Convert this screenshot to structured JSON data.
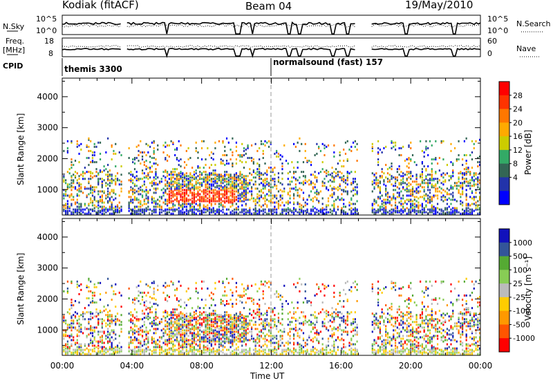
{
  "header": {
    "radar": "Kodiak (fitACF)",
    "beam": "Beam 04",
    "date": "19/May/2010"
  },
  "top_panels": {
    "nsky_label": "N.Sky",
    "nsky_ticks": [
      "10^5",
      "10^0"
    ],
    "nsearch_label": "N.Search",
    "nsearch_ticks": [
      "10^5",
      "10^0"
    ],
    "freq_label_1": "Freq.",
    "freq_label_2": "[MHz]",
    "freq_ticks": [
      "18",
      "8"
    ],
    "nave_label": "Nave",
    "nave_ticks": [
      "60",
      "0"
    ],
    "cpid_label": "CPID",
    "cpid_modes": [
      {
        "name": "themis 3300",
        "start_hour": 0
      },
      {
        "name": "normalsound (fast) 157",
        "start_hour": 12
      }
    ]
  },
  "colors": {
    "power_scale": [
      "#0000ff",
      "#2233aa",
      "#336655",
      "#33aa66",
      "#cccc00",
      "#ffaa00",
      "#ff7700",
      "#ff3300",
      "#ff0000"
    ],
    "velocity_scale": [
      "#ff0000",
      "#ff5500",
      "#ff9900",
      "#ffcc00",
      "#bbbbbb",
      "#88cc55",
      "#55aa33",
      "#335599",
      "#1111bb"
    ]
  },
  "chart_data": [
    {
      "type": "heatmap",
      "panel": "power",
      "ylabel": "Slant Range [km]",
      "yticks": [
        1000,
        2000,
        3000,
        4000
      ],
      "ylim": [
        180,
        4600
      ],
      "xlim": [
        0,
        24
      ],
      "colorbar_label": "Power [dB]",
      "colorbar_ticks": [
        4,
        8,
        12,
        16,
        20,
        24,
        28
      ],
      "colorbar_range": [
        0,
        30
      ]
    },
    {
      "type": "heatmap",
      "panel": "velocity",
      "ylabel": "Slant Range [km]",
      "yticks": [
        1000,
        2000,
        3000,
        4000
      ],
      "ylim": [
        180,
        4600
      ],
      "xlim": [
        0,
        24
      ],
      "xlabel": "Time UT",
      "xticks": [
        "00:00",
        "04:00",
        "08:00",
        "12:00",
        "16:00",
        "20:00",
        "00:00"
      ],
      "colorbar_label": "Velocity [m s⁻¹]",
      "colorbar_ticks": [
        "1000",
        "500",
        "100",
        "25",
        "-25",
        "-100",
        "-500",
        "-1000"
      ]
    }
  ]
}
